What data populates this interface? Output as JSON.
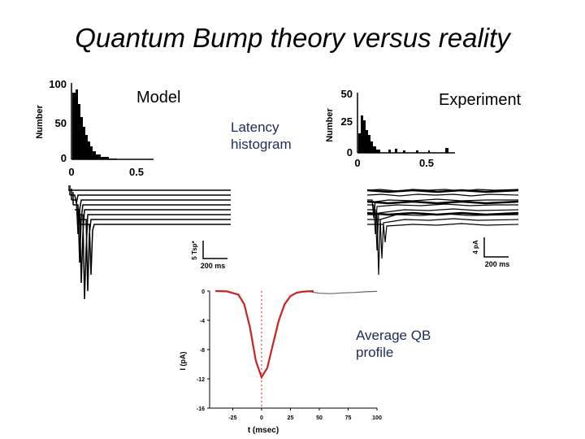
{
  "title": "Quantum Bump theory versus reality",
  "labels": {
    "model": "Model",
    "experiment": "Experiment",
    "latency": [
      "Latency",
      "histogram"
    ],
    "average": [
      "Average QB",
      "profile"
    ]
  },
  "model_hist": {
    "ylabel": "Number",
    "yticks": [
      "100",
      "50",
      "0"
    ],
    "xticks": [
      "0",
      "0.5"
    ]
  },
  "exp_hist": {
    "ylabel": "Number",
    "yticks": [
      "50",
      "25",
      "0"
    ],
    "xticks": [
      "0",
      "0.5"
    ]
  },
  "model_scale": {
    "vertical": "5 Tsp*",
    "horizontal": "200 ms"
  },
  "exp_scale": {
    "vertical": "4 pA",
    "horizontal": "200 ms"
  },
  "chart_data": {
    "type": "line",
    "xlabel": "t (msec)",
    "ylabel": "I (pA)",
    "xticks": [
      "-25",
      "0",
      "25",
      "50",
      "75",
      "100"
    ],
    "yticks": [
      "0",
      "-4",
      "-8",
      "-12",
      "-16"
    ],
    "xlim": [
      -45,
      100
    ],
    "ylim": [
      -16,
      0
    ],
    "colors": {
      "data": "#666666",
      "fit": "#cc2222",
      "zero": "#cc2222"
    },
    "series": [
      {
        "x": [
          -40,
          -30,
          -20,
          -15,
          -10,
          -5,
          0,
          5,
          10,
          15,
          20,
          25,
          30,
          35,
          40,
          50,
          60,
          70,
          80,
          90,
          100
        ],
        "y": [
          0,
          -0.05,
          -0.5,
          -1.8,
          -5.0,
          -9.5,
          -11.8,
          -10.5,
          -7.2,
          -4.0,
          -1.8,
          -0.7,
          -0.25,
          -0.1,
          -0.05,
          -0.3,
          -0.35,
          -0.25,
          -0.2,
          -0.1,
          -0.05
        ]
      },
      {
        "x": [
          -40,
          -30,
          -20,
          -15,
          -10,
          -5,
          0,
          5,
          10,
          15,
          20,
          25,
          30,
          35,
          40,
          45
        ],
        "y": [
          0,
          -0.05,
          -0.5,
          -1.8,
          -5.0,
          -9.5,
          -11.8,
          -10.5,
          -7.2,
          -4.0,
          -1.8,
          -0.7,
          -0.25,
          -0.1,
          -0.05,
          0
        ]
      }
    ]
  }
}
